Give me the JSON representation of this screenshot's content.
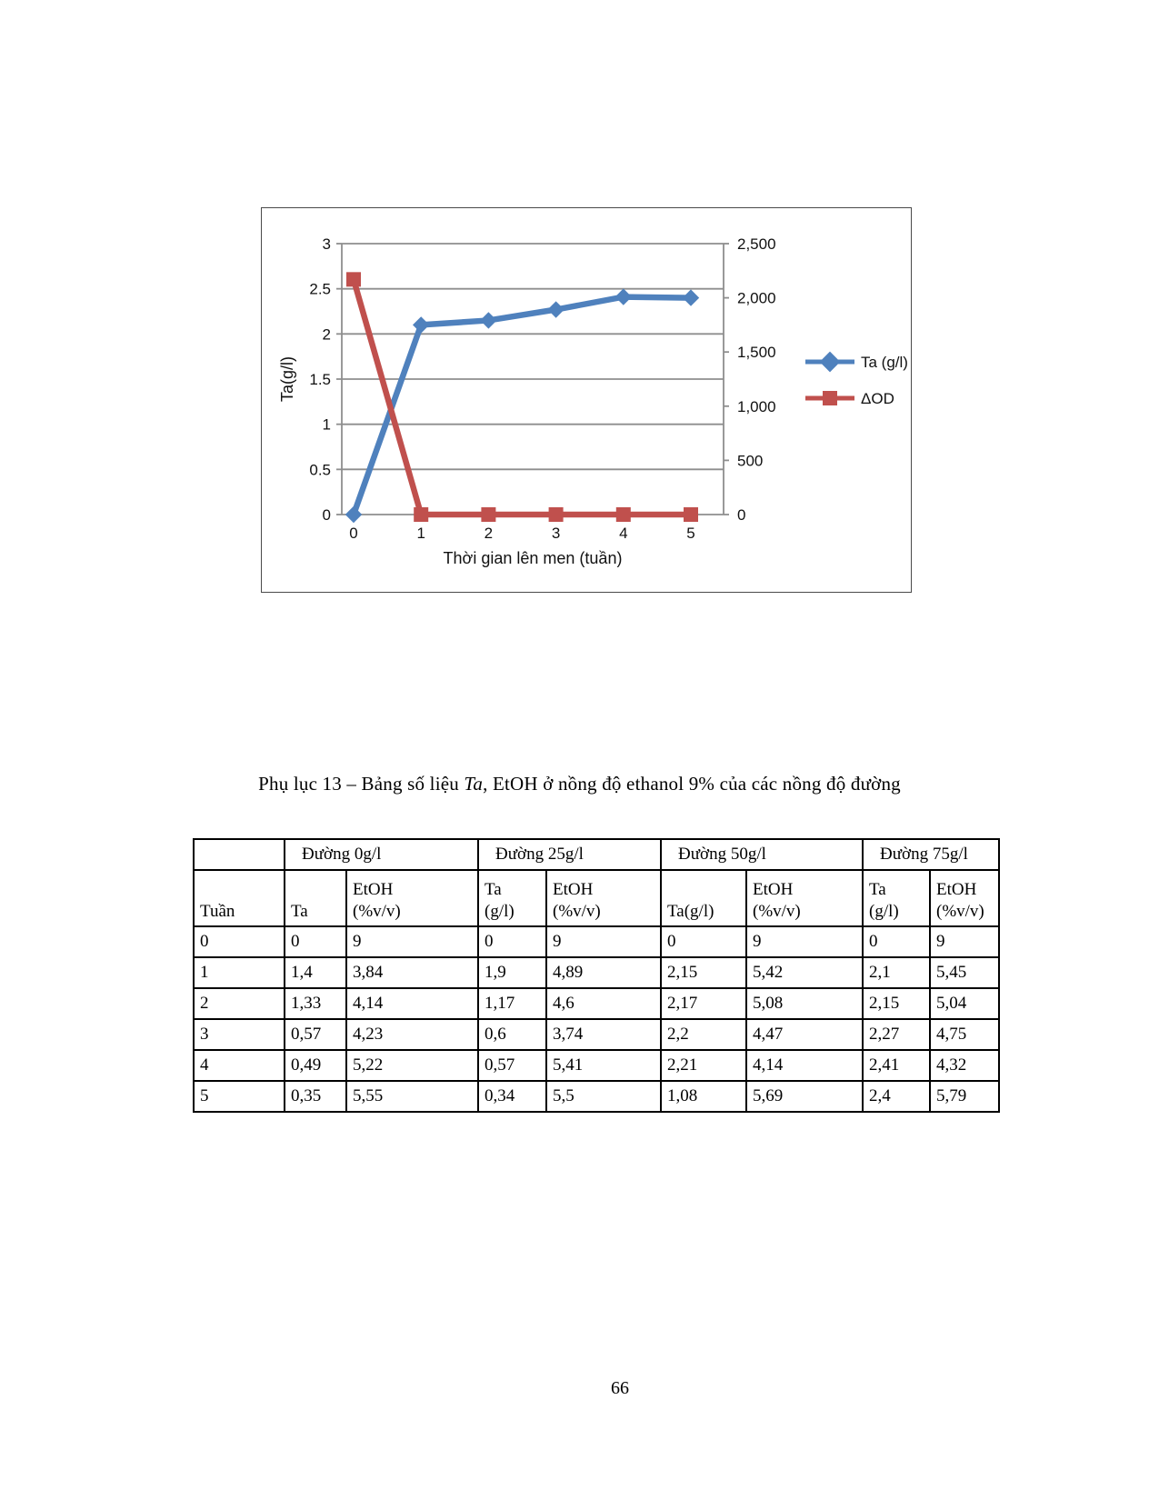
{
  "chart_data": {
    "type": "line",
    "x": [
      "0",
      "1",
      "2",
      "3",
      "4",
      "5"
    ],
    "series": [
      {
        "name": "Ta (g/l)",
        "axis": "left",
        "color": "#4f81bd",
        "marker": "diamond",
        "values": [
          0,
          2.1,
          2.15,
          2.27,
          2.41,
          2.4
        ]
      },
      {
        "name": "ΔOD",
        "axis": "right",
        "color": "#c0504d",
        "marker": "square",
        "values": [
          2170,
          0,
          0,
          0,
          0,
          0
        ]
      }
    ],
    "title": "",
    "xlabel": "Thời gian lên men (tuần)",
    "ylabel_left": "Ta(g/l)",
    "ylabel_right": "",
    "left_axis": {
      "min": 0,
      "max": 3,
      "step": 0.5,
      "ticks": [
        "3",
        "2.5",
        "2",
        "1.5",
        "1",
        "0.5",
        "0"
      ]
    },
    "right_axis": {
      "min": 0,
      "max": 2500,
      "step": 500,
      "ticks": [
        "2,500",
        "2,000",
        "1,500",
        "1,000",
        "500",
        "0"
      ]
    },
    "legend": [
      "Ta (g/l)",
      "ΔOD"
    ],
    "legend_position": "right",
    "grid": true
  },
  "caption": {
    "part1": "Phụ lục 13 – Bảng số liệu ",
    "italic": "Ta",
    "part2": ", EtOH ở nồng độ ethanol 9% của các nồng độ đường"
  },
  "table": {
    "group_headers": [
      {
        "label": "",
        "span": 1
      },
      {
        "label": "Đường 0g/l",
        "span": 2
      },
      {
        "label": "Đường 25g/l",
        "span": 2
      },
      {
        "label": "Đường 50g/l",
        "span": 2
      },
      {
        "label": "Đường 75g/l",
        "span": 2
      }
    ],
    "col_headers": [
      "Tuần",
      "Ta",
      "EtOH\n(%v/v)",
      "Ta\n(g/l)",
      "EtOH\n(%v/v)",
      "Ta(g/l)",
      "EtOH\n(%v/v)",
      "Ta\n(g/l)",
      "EtOH\n(%v/v)"
    ],
    "rows": [
      [
        "0",
        "0",
        "9",
        "0",
        "9",
        "0",
        "9",
        "0",
        "9"
      ],
      [
        "1",
        "1,4",
        "3,84",
        "1,9",
        "4,89",
        "2,15",
        "5,42",
        "2,1",
        "5,45"
      ],
      [
        "2",
        "1,33",
        "4,14",
        "1,17",
        "4,6",
        "2,17",
        "5,08",
        "2,15",
        "5,04"
      ],
      [
        "3",
        "0,57",
        "4,23",
        "0,6",
        "3,74",
        "2,2",
        "4,47",
        "2,27",
        "4,75"
      ],
      [
        "4",
        "0,49",
        "5,22",
        "0,57",
        "5,41",
        "2,21",
        "4,14",
        "2,41",
        "4,32"
      ],
      [
        "5",
        "0,35",
        "5,55",
        "0,34",
        "5,5",
        "1,08",
        "5,69",
        "2,4",
        "5,79"
      ]
    ]
  },
  "page": {
    "number": "66"
  }
}
